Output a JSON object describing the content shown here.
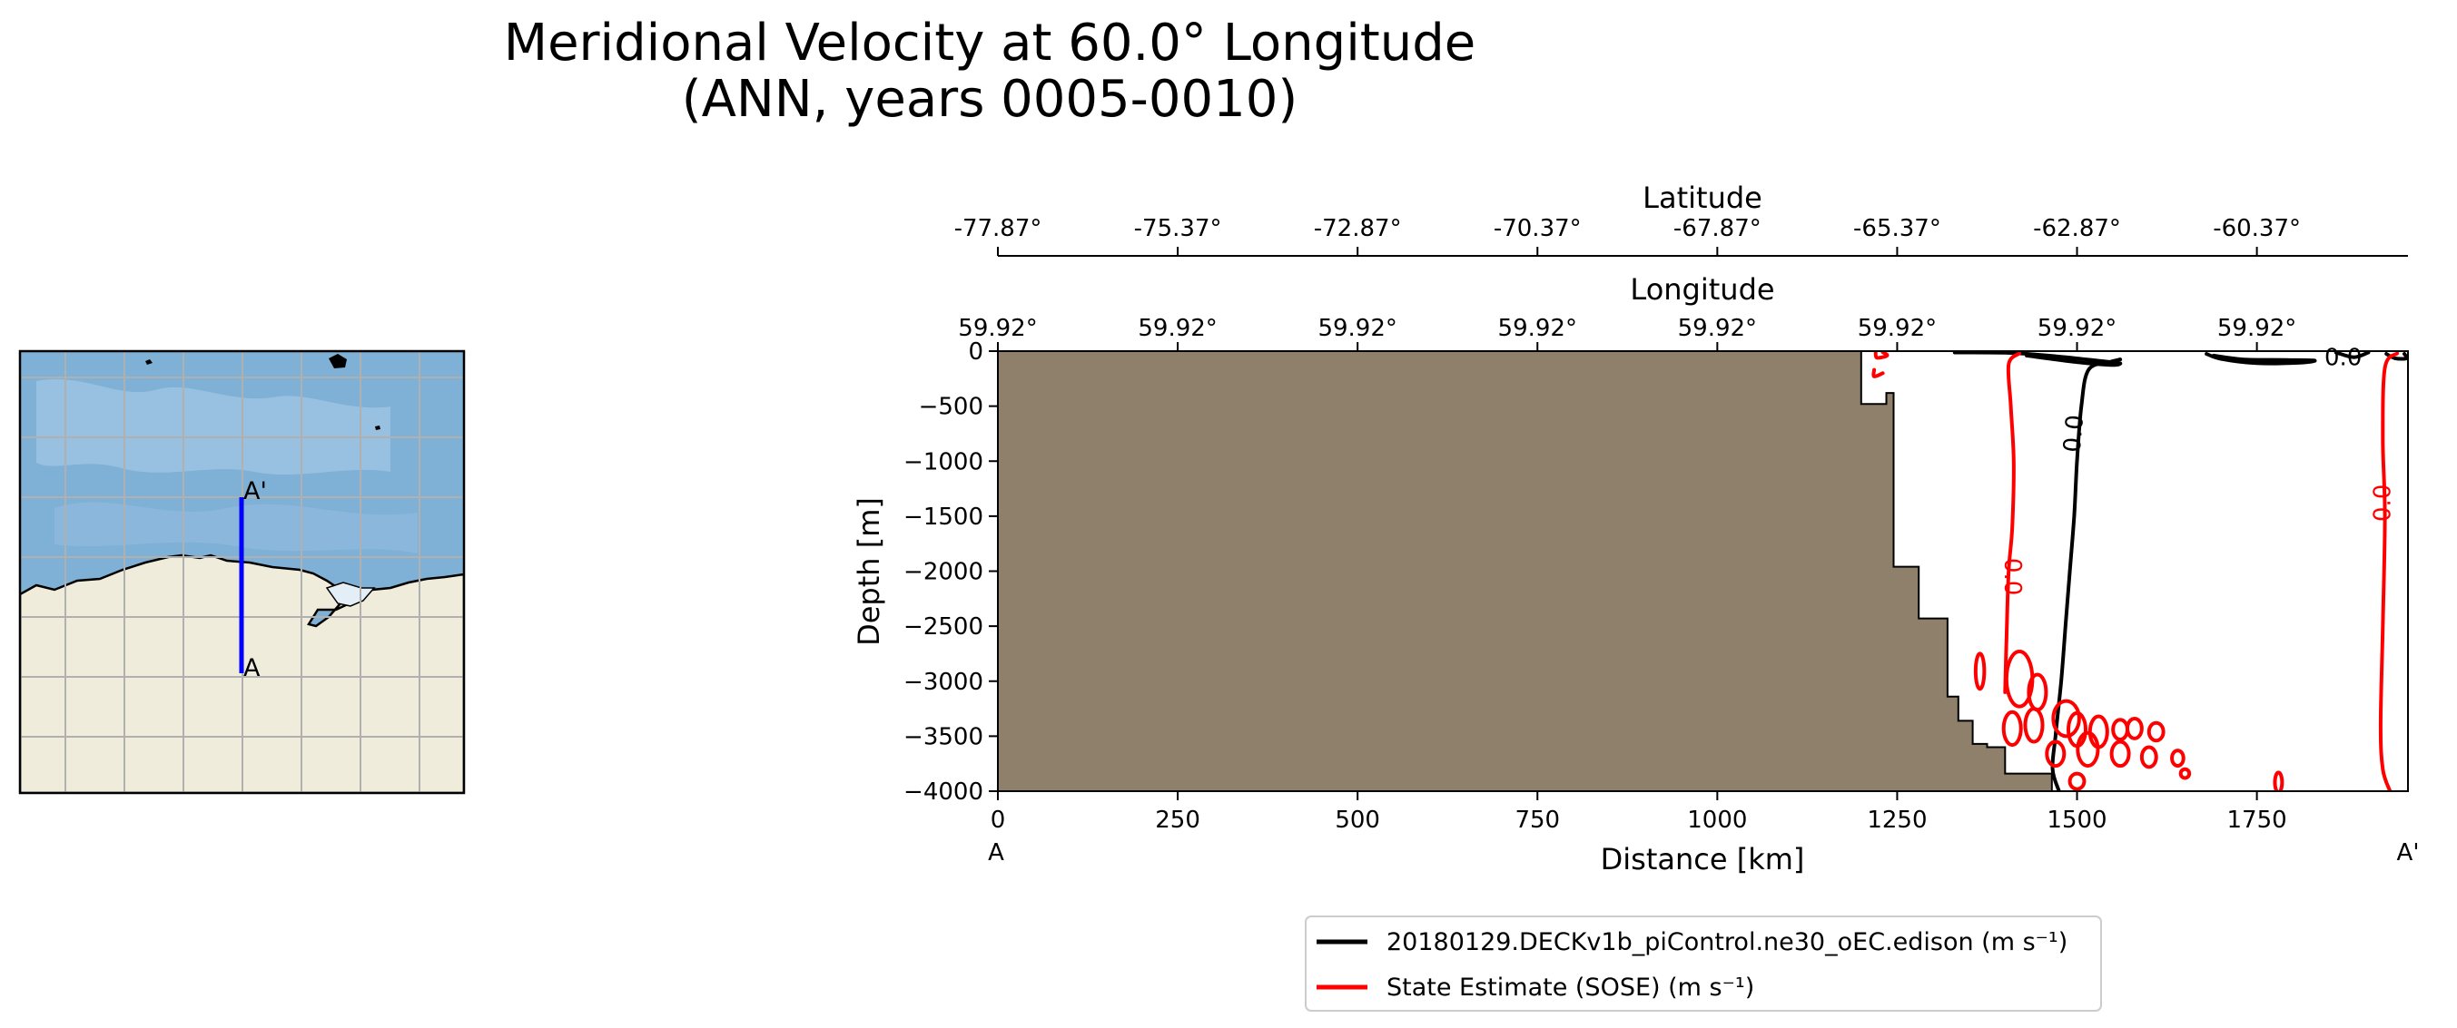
{
  "figure": {
    "title_line1": "Meridional Velocity at 60.0° Longitude",
    "title_line2": "(ANN, years 0005-0010)"
  },
  "inset_map": {
    "label_start": "A",
    "label_end": "A'",
    "colors": {
      "ocean": "#7fb0d6",
      "ocean_light": "#a9cde8",
      "land": "#efecdc",
      "ice": "#ddeaf4",
      "grid": "#b0b0b0",
      "transect": "#0000ff"
    }
  },
  "chart_data": {
    "type": "contour-section",
    "title": "Meridional Velocity at 60.0° Longitude (ANN, years 0005-0010)",
    "xlabel": "Distance [km]",
    "ylabel": "Depth [m]",
    "xlim": [
      0,
      1960
    ],
    "ylim": [
      -4000,
      0
    ],
    "x_ticks": [
      0,
      250,
      500,
      750,
      1000,
      1250,
      1500,
      1750
    ],
    "y_ticks": [
      0,
      -500,
      -1000,
      -1500,
      -2000,
      -2500,
      -3000,
      -3500,
      -4000
    ],
    "x_endpoint_labels": {
      "start": "A",
      "end": "A'"
    },
    "top_axes": [
      {
        "label": "Latitude",
        "ticks": [
          "-77.87°",
          "-75.37°",
          "-72.87°",
          "-70.37°",
          "-67.87°",
          "-65.37°",
          "-62.87°",
          "-60.37°"
        ]
      },
      {
        "label": "Longitude",
        "ticks": [
          "59.92°",
          "59.92°",
          "59.92°",
          "59.92°",
          "59.92°",
          "59.92°",
          "59.92°",
          "59.92°"
        ]
      }
    ],
    "bathymetry": [
      [
        0,
        0
      ],
      [
        1200,
        0
      ],
      [
        1200,
        -480
      ],
      [
        1235,
        -480
      ],
      [
        1235,
        -380
      ],
      [
        1245,
        -380
      ],
      [
        1245,
        -1960
      ],
      [
        1280,
        -1960
      ],
      [
        1280,
        -2430
      ],
      [
        1320,
        -2430
      ],
      [
        1320,
        -3140
      ],
      [
        1335,
        -3140
      ],
      [
        1335,
        -3360
      ],
      [
        1355,
        -3360
      ],
      [
        1355,
        -3570
      ],
      [
        1375,
        -3570
      ],
      [
        1375,
        -3600
      ],
      [
        1400,
        -3600
      ],
      [
        1400,
        -3840
      ],
      [
        1465,
        -3840
      ],
      [
        1465,
        -4000
      ],
      [
        0,
        -4000
      ]
    ],
    "series": [
      {
        "name": "20180129.DECKv1b_piControl.ne30_oEC.edison (m s⁻¹)",
        "color": "#000000",
        "contour_level": "0.0",
        "lines": [
          [
            [
              1475,
              -4000
            ],
            [
              1466,
              -3800
            ],
            [
              1470,
              -3500
            ],
            [
              1478,
              -3000
            ],
            [
              1484,
              -2500
            ],
            [
              1490,
              -2000
            ],
            [
              1496,
              -1500
            ],
            [
              1500,
              -1000
            ],
            [
              1506,
              -500
            ],
            [
              1516,
              -170
            ],
            [
              1545,
              -100
            ],
            [
              1560,
              -75
            ]
          ],
          [
            [
              1330,
              -12
            ],
            [
              1400,
              -15
            ],
            [
              1460,
              -40
            ],
            [
              1540,
              -95
            ],
            [
              1560,
              -110
            ],
            [
              1548,
              -125
            ],
            [
              1500,
              -100
            ],
            [
              1430,
              -40
            ]
          ],
          [
            [
              1680,
              -25
            ],
            [
              1700,
              -70
            ],
            [
              1750,
              -110
            ],
            [
              1810,
              -105
            ],
            [
              1830,
              -85
            ],
            [
              1790,
              -80
            ],
            [
              1730,
              -75
            ],
            [
              1690,
              -40
            ]
          ],
          [
            [
              1860,
              -12
            ],
            [
              1885,
              -55
            ],
            [
              1905,
              -12
            ]
          ],
          [
            [
              1930,
              -25
            ],
            [
              1942,
              -65
            ],
            [
              1958,
              -65
            ],
            [
              1955,
              -25
            ]
          ]
        ],
        "labels": [
          {
            "text": "0.0",
            "x": 1496,
            "y": -750,
            "angle": -85
          },
          {
            "text": "0.0",
            "x": 1870,
            "y": -60,
            "angle": 0
          }
        ]
      },
      {
        "name": "State Estimate (SOSE) (m s⁻¹)",
        "color": "#ff0000",
        "contour_level": "0.0",
        "lines": [
          [
            [
              1420,
              -20
            ],
            [
              1405,
              -120
            ],
            [
              1408,
              -500
            ],
            [
              1412,
              -1000
            ],
            [
              1410,
              -1600
            ],
            [
              1405,
              -2000
            ],
            [
              1402,
              -2600
            ],
            [
              1400,
              -3100
            ]
          ],
          [
            [
              1945,
              -20
            ],
            [
              1928,
              -150
            ],
            [
              1925,
              -800
            ],
            [
              1928,
              -1500
            ],
            [
              1925,
              -2500
            ],
            [
              1922,
              -3400
            ],
            [
              1925,
              -3800
            ],
            [
              1935,
              -4000
            ]
          ],
          [
            [
              1220,
              -10
            ],
            [
              1222,
              -60
            ],
            [
              1236,
              -40
            ],
            [
              1230,
              -10
            ]
          ],
          [
            [
              1218,
              -170
            ],
            [
              1218,
              -230
            ],
            [
              1230,
              -200
            ]
          ]
        ],
        "ellipses": [
          [
            1420,
            -2980,
            18,
            250
          ],
          [
            1445,
            -3100,
            12,
            160
          ],
          [
            1410,
            -3430,
            12,
            150
          ],
          [
            1440,
            -3400,
            12,
            150
          ],
          [
            1485,
            -3340,
            18,
            160
          ],
          [
            1500,
            -3440,
            12,
            150
          ],
          [
            1530,
            -3460,
            12,
            140
          ],
          [
            1560,
            -3440,
            10,
            90
          ],
          [
            1580,
            -3430,
            10,
            90
          ],
          [
            1610,
            -3460,
            10,
            80
          ],
          [
            1470,
            -3660,
            12,
            110
          ],
          [
            1515,
            -3620,
            14,
            150
          ],
          [
            1560,
            -3660,
            12,
            110
          ],
          [
            1600,
            -3690,
            10,
            90
          ],
          [
            1640,
            -3700,
            8,
            70
          ],
          [
            1365,
            -2910,
            6,
            160
          ],
          [
            1500,
            -3910,
            10,
            70
          ],
          [
            1650,
            -3840,
            6,
            40
          ],
          [
            1780,
            -3920,
            5,
            90
          ]
        ],
        "labels": [
          {
            "text": "0.0",
            "x": 1410,
            "y": -2050,
            "angle": 90
          },
          {
            "text": "0.0",
            "x": 1925,
            "y": -1380,
            "angle": -90
          }
        ]
      }
    ],
    "colors": {
      "land": "#8e806a",
      "black_series": "#000000",
      "red_series": "#ff0000"
    },
    "legend_position": "bottom-center"
  }
}
